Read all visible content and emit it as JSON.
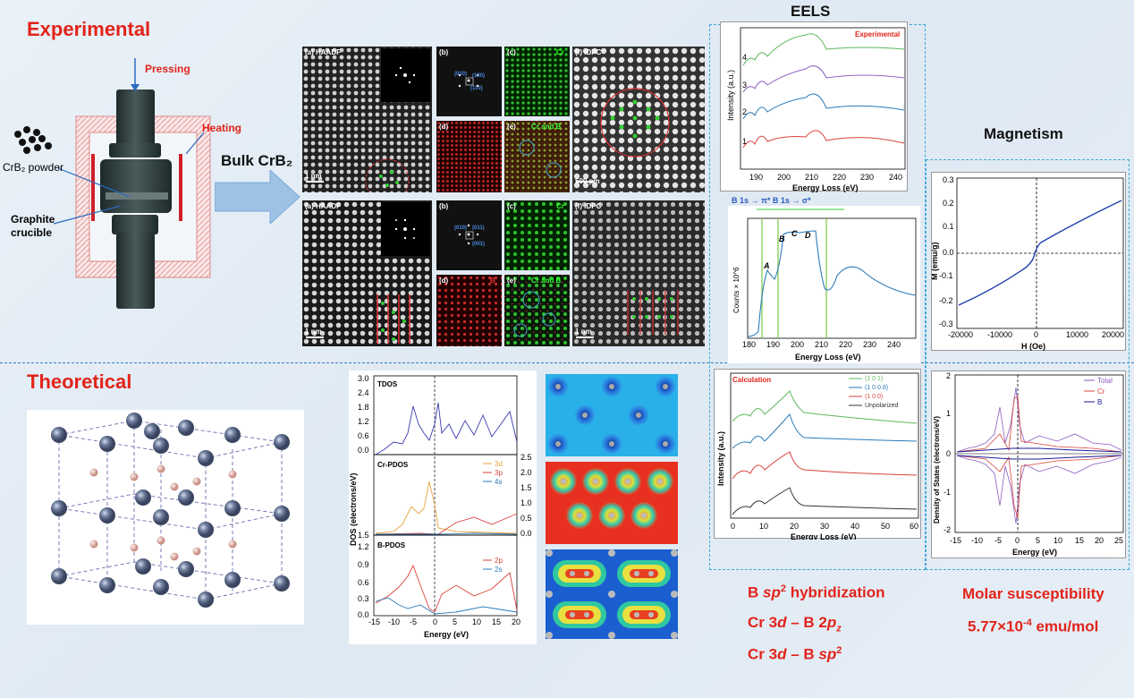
{
  "headings": {
    "experimental": "Experimental",
    "theoretical": "Theoretical",
    "eels": "EELS",
    "magnetism": "Magnetism",
    "bulk": "Bulk CrB₂"
  },
  "apparatus": {
    "pressing": "Pressing",
    "heating": "Heating",
    "powder": "CrB₂ powder",
    "crucible_line1": "Graphite",
    "crucible_line2": "crucible"
  },
  "micro_top": {
    "a": "(a) HAADF",
    "b": "(b)",
    "c": "(c)",
    "c_tag": "Cr",
    "d": "(d)",
    "e": "(e)",
    "e_tag": "Cr and B",
    "f": "(f) iDPC",
    "idx1": "(010)",
    "idx2": "(100)",
    "idx3": "(110)",
    "scale_a": "1 nm",
    "scale_f": "500 pm"
  },
  "micro_bottom": {
    "a": "(a) HAADF",
    "b": "(b)",
    "c": "(c)",
    "c_tag": "Cr",
    "d": "(d)",
    "d_tag": "B",
    "e": "(e)",
    "e_tag": "Cr and B",
    "f": "(f) iDPC",
    "idx1": "(010)",
    "idx2": "(011)",
    "idx3": "(001)",
    "scale_a": "1 nm",
    "scale_f": "1 nm"
  },
  "eels_exp": {
    "legend": "Experimental",
    "ylabel": "Intensity (a.u.)",
    "xlabel": "Energy Loss (eV)",
    "curve_labels": [
      "1",
      "2",
      "3",
      "4"
    ],
    "xticks": [
      "190",
      "200",
      "210",
      "220",
      "230",
      "240"
    ]
  },
  "eels_b": {
    "header": "B 1s → π* B 1s → σ*",
    "ylabel": "Counts × 10^6",
    "xlabel": "Energy Loss (eV)",
    "peaks": [
      "A",
      "B",
      "C",
      "D"
    ],
    "xticks": [
      "180",
      "190",
      "200",
      "210",
      "220",
      "230",
      "240"
    ]
  },
  "eels_calc": {
    "title": "Calculation",
    "ylabel": "Intensity (a.u.)",
    "xlabel": "Energy Loss (eV)",
    "legend": [
      "(1 0 1)",
      "(1 0 0.8)",
      "(1 0 0)",
      "Unpolarized"
    ],
    "legend_colors": [
      "#5cb85c",
      "#2a7ab8",
      "#d9413a",
      "#333333"
    ],
    "xticks": [
      "0",
      "10",
      "20",
      "30",
      "40",
      "50",
      "60"
    ]
  },
  "magnetism_plot": {
    "ylabel": "M (emu/g)",
    "xlabel": "H (Oe)",
    "yticks": [
      "0.3",
      "0.2",
      "0.1",
      "0.0",
      "-0.1",
      "-0.2",
      "-0.3"
    ],
    "xticks": [
      "-20000",
      "-10000",
      "0",
      "10000",
      "20000"
    ]
  },
  "dos_calc": {
    "ylabel": "Density of States (electrons/eV)",
    "xlabel": "Energy (eV)",
    "legend": [
      "Total",
      "Cr",
      "B"
    ],
    "legend_colors": [
      "#8a5cc0",
      "#d9413a",
      "#1a1a9a"
    ],
    "yticks": [
      "2",
      "1",
      "0",
      "-1",
      "-2"
    ],
    "xticks": [
      "-15",
      "-10",
      "-5",
      "0",
      "5",
      "10",
      "15",
      "20",
      "25"
    ]
  },
  "dos_panel": {
    "ylabel": "DOS (electrons/eV)",
    "xlabel": "Energy (eV)",
    "tdos": "TDOS",
    "crpdos": "Cr-PDOS",
    "bpdos": "B-PDOS",
    "cr_legend": [
      "3d",
      "3p",
      "4s"
    ],
    "cr_colors": [
      "#e8a33c",
      "#d9413a",
      "#2a7ab8"
    ],
    "b_legend": [
      "2p",
      "2s"
    ],
    "b_colors": [
      "#d9413a",
      "#2a7ab8"
    ],
    "tdos_yticks": [
      "3.0",
      "2.4",
      "1.8",
      "1.2",
      "0.6",
      "0.0"
    ],
    "cr_yticks": [
      "2.5",
      "2.0",
      "1.5",
      "1.0",
      "0.5",
      "0.0"
    ],
    "cr_left_tick": "1.5",
    "b_yticks": [
      "1.2",
      "0.9",
      "0.6",
      "0.3",
      "0.0"
    ],
    "xticks": [
      "-15",
      "-10",
      "-5",
      "0",
      "5",
      "10",
      "15",
      "20"
    ]
  },
  "conclusions": {
    "line1_a": "B ",
    "line1_b": "sp",
    "line1_sup": "2",
    "line1_c": " hybridization",
    "line2_a": "Cr 3",
    "line2_b": "d",
    "line2_c": " – B 2",
    "line2_d": "p",
    "line2_sub": "z",
    "line3_a": "Cr 3",
    "line3_b": "d",
    "line3_c": " – B ",
    "line3_d": "sp",
    "line3_sup": "2",
    "molar_title": "Molar susceptibility",
    "molar_value_a": "5.77×10",
    "molar_value_sup": "-4",
    "molar_value_b": " emu/mol"
  }
}
